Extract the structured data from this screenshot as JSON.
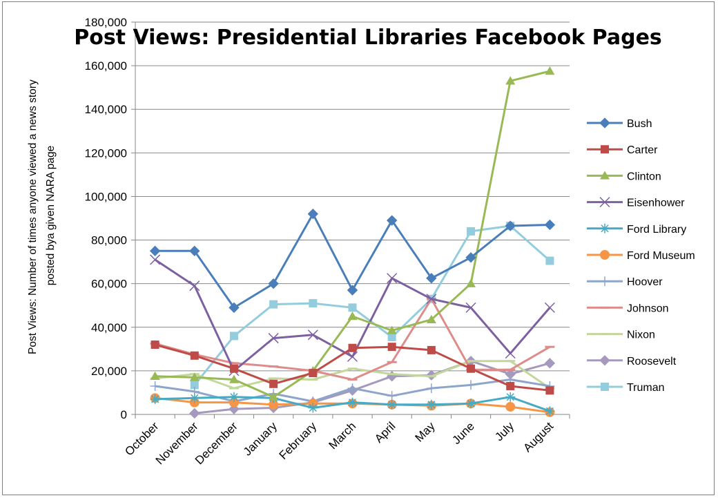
{
  "chart_data": {
    "type": "line",
    "title": "Post Views: Presidential Libraries Facebook Pages",
    "ylabel_lines": [
      "Post Views: Number of times anyone viewed a news story",
      "posted bya given NARA page"
    ],
    "xlabel": "",
    "ylim": [
      0,
      180000
    ],
    "yticks": [
      0,
      20000,
      40000,
      60000,
      80000,
      100000,
      120000,
      140000,
      160000,
      180000
    ],
    "ytick_labels": [
      "0",
      "20,000",
      "40,000",
      "60,000",
      "80,000",
      "100,000",
      "120,000",
      "140,000",
      "160,000",
      "180,000"
    ],
    "grid": true,
    "legend_position": "right",
    "categories": [
      "October",
      "November",
      "December",
      "January",
      "February",
      "March",
      "April",
      "May",
      "June",
      "July",
      "August"
    ],
    "series": [
      {
        "name": "Bush",
        "color": "#4a7ebb",
        "marker": "diamond",
        "values": [
          75000,
          75000,
          49000,
          60000,
          92000,
          57000,
          89000,
          62500,
          72000,
          86500,
          87000
        ]
      },
      {
        "name": "Carter",
        "color": "#be4b48",
        "marker": "square",
        "values": [
          32000,
          27000,
          21000,
          14000,
          19000,
          30500,
          31000,
          29500,
          21000,
          13000,
          11000
        ]
      },
      {
        "name": "Clinton",
        "color": "#98b954",
        "marker": "triangle",
        "values": [
          17500,
          17000,
          16000,
          8000,
          20000,
          45000,
          38500,
          43500,
          60000,
          153000,
          157500
        ]
      },
      {
        "name": "Eisenhower",
        "color": "#7d60a0",
        "marker": "x",
        "values": [
          71000,
          59000,
          20000,
          35000,
          36500,
          26500,
          62500,
          53000,
          49000,
          28000,
          49000
        ]
      },
      {
        "name": "Ford Library",
        "color": "#46aac5",
        "marker": "star",
        "values": [
          7000,
          7500,
          8000,
          7500,
          3000,
          5500,
          4500,
          4500,
          5000,
          8000,
          1500
        ]
      },
      {
        "name": "Ford Museum",
        "color": "#f69546",
        "marker": "circle",
        "values": [
          7500,
          5500,
          5500,
          4500,
          5000,
          5000,
          4500,
          4000,
          5000,
          3500,
          1000
        ]
      },
      {
        "name": "Hoover",
        "color": "#8ea5cb",
        "marker": "plus",
        "values": [
          13000,
          10500,
          6000,
          9500,
          6000,
          12000,
          8500,
          12000,
          13500,
          16000,
          13000
        ]
      },
      {
        "name": "Johnson",
        "color": "#dd8c8a",
        "marker": "dash",
        "values": [
          32500,
          27500,
          23500,
          22000,
          20000,
          16000,
          24000,
          53000,
          20500,
          20500,
          31000
        ]
      },
      {
        "name": "Nixon",
        "color": "#c4d79b",
        "marker": "dash",
        "values": [
          16500,
          18500,
          12000,
          16500,
          16000,
          21000,
          18500,
          17500,
          24500,
          24500,
          12000
        ]
      },
      {
        "name": "Roosevelt",
        "color": "#a599bd",
        "marker": "diamond",
        "values": [
          null,
          500,
          2500,
          3000,
          5500,
          11000,
          17500,
          18000,
          24500,
          18500,
          23500
        ]
      },
      {
        "name": "Truman",
        "color": "#93cddd",
        "marker": "square",
        "values": [
          null,
          13500,
          36000,
          50500,
          51000,
          49000,
          35500,
          53000,
          84000,
          86500,
          70500
        ]
      }
    ]
  }
}
